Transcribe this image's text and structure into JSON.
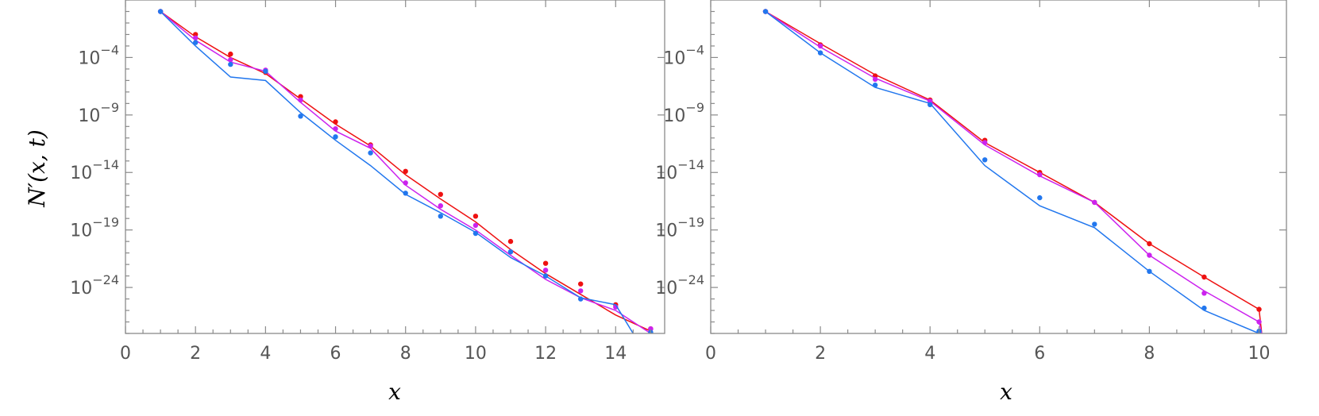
{
  "chart_data": [
    {
      "type": "line",
      "ylabel": "N′(x, t)",
      "xlabel": "x",
      "xlim": [
        0,
        15.4
      ],
      "ylim": [
        -28,
        1
      ],
      "y_scale": "log10",
      "x_ticks": [
        0,
        2,
        4,
        6,
        8,
        10,
        12,
        14
      ],
      "y_ticks": [
        -4,
        -9,
        -14,
        -19,
        -24
      ],
      "y_tick_labels": [
        "10−4",
        "10−9",
        "10−14",
        "10−19",
        "10−24"
      ],
      "series": [
        {
          "color": "#ee1111",
          "lines": [
            [
              1,
              0.0
            ],
            [
              2,
              -2.2
            ],
            [
              3,
              -4.0
            ],
            [
              4,
              -5.4
            ],
            [
              5,
              -7.6
            ],
            [
              6,
              -9.8
            ],
            [
              7,
              -11.7
            ],
            [
              8,
              -14.2
            ],
            [
              9,
              -16.3
            ],
            [
              10,
              -18.3
            ],
            [
              11,
              -20.7
            ],
            [
              12,
              -22.8
            ],
            [
              13,
              -24.6
            ],
            [
              14,
              -26.4
            ],
            [
              15,
              -27.8
            ]
          ],
          "points": [
            [
              1,
              0.0
            ],
            [
              2,
              -2.0
            ],
            [
              3,
              -3.7
            ],
            [
              4,
              -5.3
            ],
            [
              5,
              -7.4
            ],
            [
              6,
              -9.6
            ],
            [
              7,
              -11.6
            ],
            [
              8,
              -13.9
            ],
            [
              9,
              -15.9
            ],
            [
              10,
              -17.8
            ],
            [
              11,
              -20.0
            ],
            [
              12,
              -21.9
            ],
            [
              13,
              -23.7
            ],
            [
              14,
              -25.5
            ],
            [
              15,
              -27.6
            ]
          ]
        },
        {
          "color": "#cc22ee",
          "lines": [
            [
              1,
              0.0
            ],
            [
              2,
              -2.5
            ],
            [
              3,
              -4.4
            ],
            [
              4,
              -5.2
            ],
            [
              5,
              -7.9
            ],
            [
              6,
              -10.4
            ],
            [
              7,
              -11.9
            ],
            [
              8,
              -15.1
            ],
            [
              9,
              -17.2
            ],
            [
              10,
              -19.0
            ],
            [
              11,
              -21.2
            ],
            [
              12,
              -23.3
            ],
            [
              13,
              -24.9
            ],
            [
              14,
              -26.0
            ],
            [
              15,
              -28.0
            ]
          ],
          "points": [
            [
              1,
              0.0
            ],
            [
              2,
              -2.3
            ],
            [
              3,
              -4.2
            ],
            [
              4,
              -5.1
            ],
            [
              5,
              -7.7
            ],
            [
              6,
              -10.2
            ],
            [
              7,
              -11.7
            ],
            [
              8,
              -14.9
            ],
            [
              9,
              -16.9
            ],
            [
              10,
              -18.6
            ],
            [
              11,
              -20.9
            ],
            [
              12,
              -22.5
            ],
            [
              13,
              -24.3
            ],
            [
              14,
              -25.7
            ],
            [
              15,
              -27.6
            ]
          ]
        },
        {
          "color": "#2277ee",
          "lines": [
            [
              1,
              0.0
            ],
            [
              2,
              -3.0
            ],
            [
              3,
              -5.7
            ],
            [
              4,
              -6.0
            ],
            [
              5,
              -8.8
            ],
            [
              6,
              -11.2
            ],
            [
              7,
              -13.4
            ],
            [
              8,
              -15.9
            ],
            [
              9,
              -17.5
            ],
            [
              10,
              -19.2
            ],
            [
              11,
              -21.4
            ],
            [
              12,
              -23.0
            ],
            [
              13,
              -24.9
            ],
            [
              14,
              -25.5
            ],
            [
              14.5,
              -28.0
            ]
          ],
          "points": [
            [
              1,
              0.0
            ],
            [
              2,
              -2.7
            ],
            [
              3,
              -4.6
            ],
            [
              4,
              -5.2
            ],
            [
              5,
              -9.1
            ],
            [
              6,
              -10.9
            ],
            [
              7,
              -12.3
            ],
            [
              8,
              -15.8
            ],
            [
              9,
              -17.8
            ],
            [
              10,
              -19.3
            ],
            [
              11,
              -20.9
            ],
            [
              12,
              -23.0
            ],
            [
              13,
              -25.0
            ],
            [
              15,
              -27.9
            ]
          ]
        }
      ]
    },
    {
      "type": "line",
      "xlabel": "x",
      "xlim": [
        0,
        10.5
      ],
      "ylim": [
        -28,
        1
      ],
      "y_scale": "log10",
      "x_ticks": [
        0,
        2,
        4,
        6,
        8,
        10
      ],
      "y_ticks": [
        -4,
        -9,
        -14,
        -19,
        -24
      ],
      "y_tick_labels": [
        "10−4",
        "10−9",
        "10−14",
        "10−19",
        "10−24"
      ],
      "series": [
        {
          "color": "#ee1111",
          "lines": [
            [
              1,
              0.0
            ],
            [
              2,
              -2.8
            ],
            [
              3,
              -5.5
            ],
            [
              4,
              -7.7
            ],
            [
              5,
              -11.4
            ],
            [
              6,
              -14.0
            ],
            [
              7,
              -16.6
            ],
            [
              8,
              -20.2
            ],
            [
              9,
              -23.1
            ],
            [
              10,
              -25.9
            ],
            [
              10.05,
              -28.0
            ]
          ],
          "points": [
            [
              1,
              0.0
            ],
            [
              2,
              -2.9
            ],
            [
              3,
              -5.6
            ],
            [
              4,
              -7.7
            ],
            [
              5,
              -11.2
            ],
            [
              6,
              -14.0
            ],
            [
              7,
              -16.6
            ],
            [
              8,
              -20.2
            ],
            [
              9,
              -23.1
            ],
            [
              10,
              -25.9
            ]
          ]
        },
        {
          "color": "#cc22ee",
          "lines": [
            [
              1,
              0.0
            ],
            [
              2,
              -3.1
            ],
            [
              3,
              -5.8
            ],
            [
              4,
              -7.8
            ],
            [
              5,
              -11.6
            ],
            [
              6,
              -14.3
            ],
            [
              7,
              -16.6
            ],
            [
              8,
              -21.2
            ],
            [
              9,
              -24.3
            ],
            [
              10,
              -27.0
            ],
            [
              10.05,
              -28.0
            ]
          ],
          "points": [
            [
              1,
              0.0
            ],
            [
              2,
              -3.0
            ],
            [
              3,
              -5.9
            ],
            [
              4,
              -7.8
            ],
            [
              5,
              -11.4
            ],
            [
              6,
              -14.2
            ],
            [
              7,
              -16.6
            ],
            [
              8,
              -21.2
            ],
            [
              9,
              -24.5
            ],
            [
              10,
              -27.0
            ]
          ]
        },
        {
          "color": "#2277ee",
          "lines": [
            [
              1,
              0.0
            ],
            [
              2,
              -3.6
            ],
            [
              3,
              -6.6
            ],
            [
              4,
              -8.0
            ],
            [
              5,
              -13.4
            ],
            [
              6,
              -16.9
            ],
            [
              7,
              -18.8
            ],
            [
              8,
              -22.6
            ],
            [
              9,
              -26.0
            ],
            [
              10,
              -28.0
            ]
          ],
          "points": [
            [
              1,
              0.0
            ],
            [
              2,
              -3.6
            ],
            [
              3,
              -6.4
            ],
            [
              4,
              -8.1
            ],
            [
              5,
              -12.9
            ],
            [
              6,
              -16.2
            ],
            [
              7,
              -18.5
            ],
            [
              8,
              -22.6
            ],
            [
              9,
              -25.8
            ],
            [
              10,
              -27.8
            ]
          ]
        }
      ]
    }
  ],
  "labels": {
    "ylabel_text": "N′(x, t)",
    "left_xlabel": "x",
    "right_xlabel": "x"
  }
}
